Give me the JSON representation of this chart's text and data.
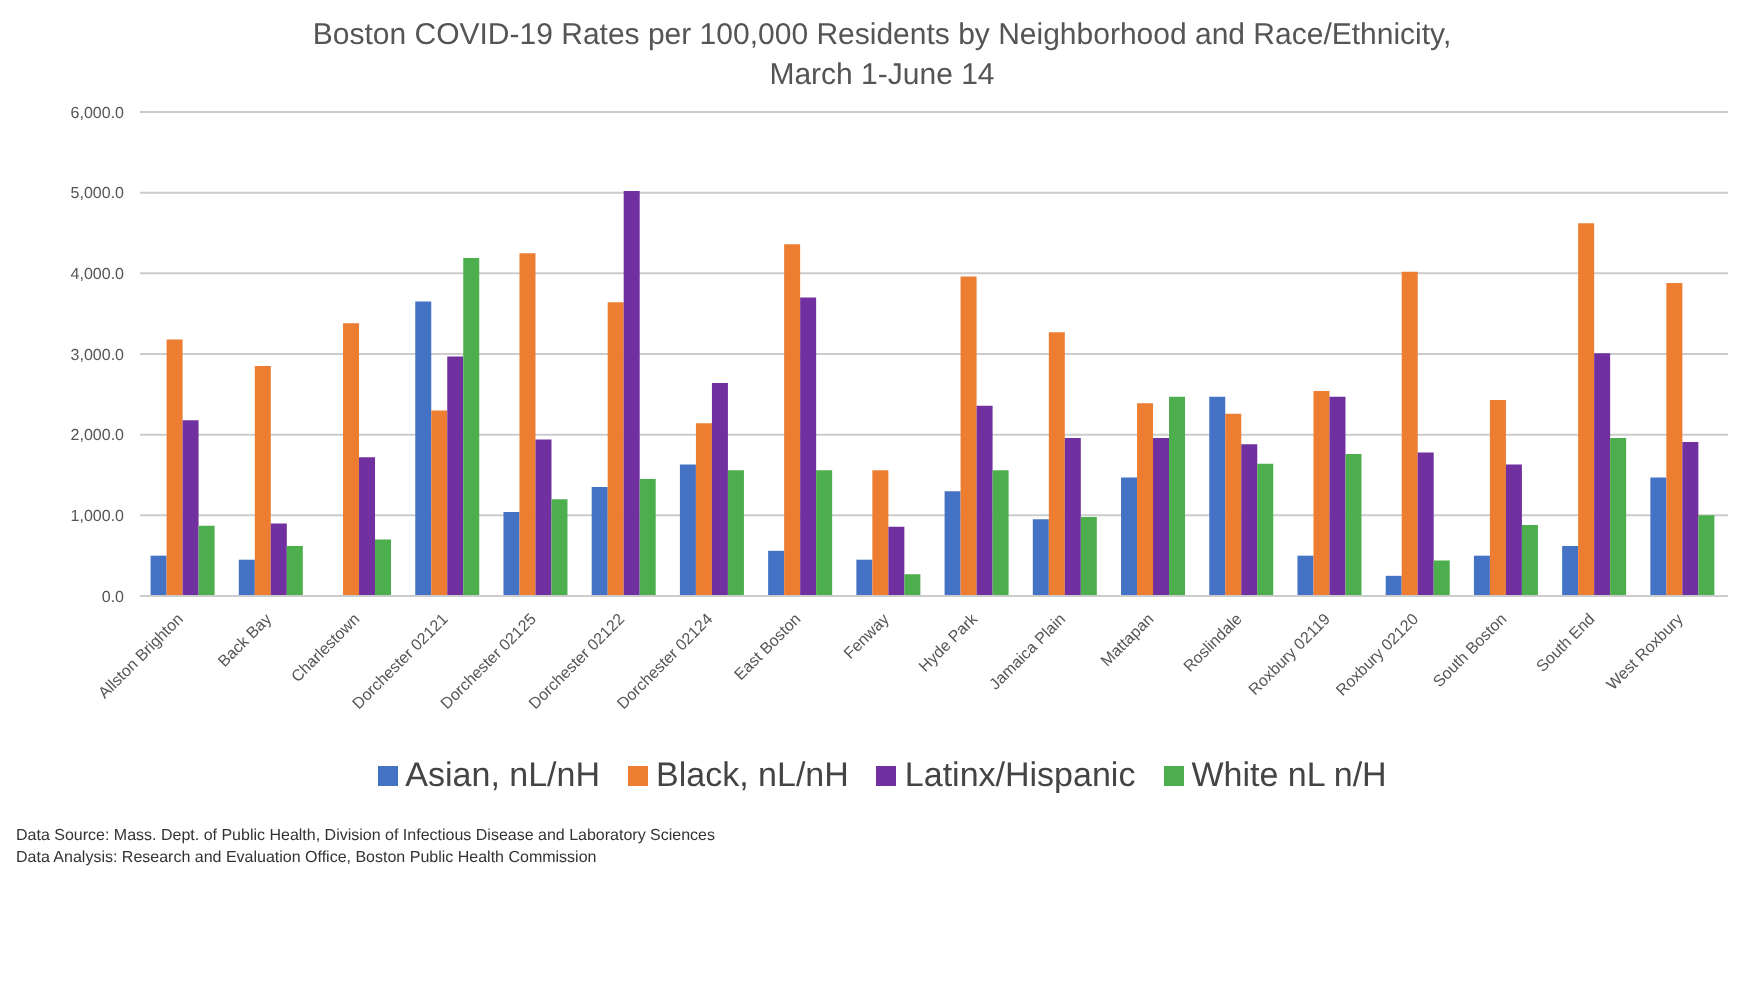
{
  "chart_data": {
    "type": "bar",
    "title": "Boston COVID-19 Rates per 100,000 Residents by Neighborhood and Race/Ethnicity, March 1-June 14",
    "categories": [
      "Allston Brighton",
      "Back Bay",
      "Charlestown",
      "Dorchester 02121",
      "Dorchester 02125",
      "Dorchester 02122",
      "Dorchester 02124",
      "East Boston",
      "Fenway",
      "Hyde Park",
      "Jamaica Plain",
      "Mattapan",
      "Roslindale",
      "Roxbury 02119",
      "Roxbury 02120",
      "South Boston",
      "South End",
      "West Roxbury"
    ],
    "series": [
      {
        "name": "Asian, nL/nH",
        "color": "#4472c4",
        "values": [
          500,
          450,
          null,
          3650,
          1040,
          1350,
          1630,
          560,
          450,
          1300,
          950,
          1470,
          2470,
          500,
          250,
          500,
          620,
          1470
        ]
      },
      {
        "name": "Black, nL/nH",
        "color": "#ed7d31",
        "values": [
          3180,
          2850,
          3380,
          2300,
          4250,
          3640,
          2140,
          4360,
          1560,
          3960,
          3270,
          2390,
          2260,
          2540,
          4020,
          2430,
          4620,
          3880
        ]
      },
      {
        "name": "Latinx/Hispanic",
        "color": "#7030a0",
        "values": [
          2180,
          900,
          1720,
          2970,
          1940,
          5020,
          2640,
          3700,
          860,
          2360,
          1960,
          1960,
          1880,
          2470,
          1780,
          1630,
          3010,
          1910
        ]
      },
      {
        "name": "White nL n/H",
        "color": "#4cae4c",
        "values": [
          870,
          620,
          700,
          4190,
          1200,
          1450,
          1560,
          1560,
          270,
          1560,
          980,
          2470,
          1640,
          1760,
          440,
          880,
          1960,
          1000
        ]
      }
    ],
    "ylim": [
      0,
      6000
    ],
    "yticks": [
      {
        "value": 0,
        "label": "0.0"
      },
      {
        "value": 1000,
        "label": "1,000.0"
      },
      {
        "value": 2000,
        "label": "2,000.0"
      },
      {
        "value": 3000,
        "label": "3,000.0"
      },
      {
        "value": 4000,
        "label": "4,000.0"
      },
      {
        "value": 5000,
        "label": "5,000.0"
      },
      {
        "value": 6000,
        "label": "6,000.0"
      }
    ],
    "grid": "y",
    "legend": "bottom",
    "annotations": [
      "Data Source: Mass. Dept. of Public Health, Division of Infectious Disease and Laboratory Sciences",
      "Data Analysis: Research and Evaluation Office, Boston Public Health Commission"
    ]
  }
}
